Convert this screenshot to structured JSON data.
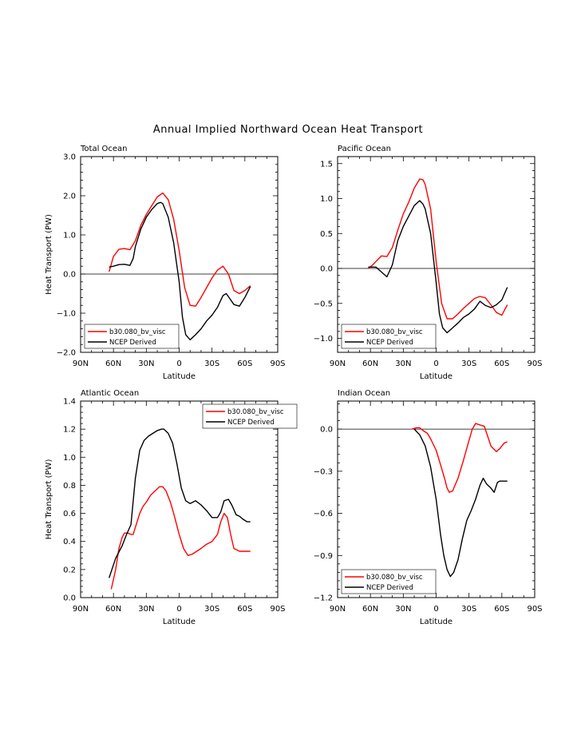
{
  "title": "Annual Implied Northward Ocean Heat Transport",
  "colors": {
    "model": "#ff0000",
    "obs": "#000000",
    "zero": "#000000"
  },
  "chart_data": [
    {
      "type": "line",
      "panel_title": "Total Ocean",
      "xlabel": "Latitude",
      "ylabel": "Heat Transport (PW)",
      "xlim": [
        90,
        -90
      ],
      "x_ticks": [
        90,
        60,
        30,
        0,
        -30,
        -60,
        -90
      ],
      "x_tick_labels": [
        "90N",
        "60N",
        "30N",
        "0",
        "30S",
        "60S",
        "90S"
      ],
      "ylim": [
        -2.0,
        3.0
      ],
      "y_ticks": [
        -2.0,
        -1.0,
        0.0,
        1.0,
        2.0,
        3.0
      ],
      "y_tick_labels": [
        "−2.0",
        "−1.0",
        "0.0",
        "1.0",
        "2.0",
        "3.0"
      ],
      "zero_line": true,
      "legend_position": "bottom-left",
      "series": [
        {
          "name": "b30.080_bv_visc",
          "color": "red",
          "x": [
            64,
            60,
            55,
            50,
            45,
            40,
            35,
            30,
            25,
            20,
            15,
            10,
            5,
            0,
            -5,
            -10,
            -15,
            -20,
            -25,
            -30,
            -35,
            -40,
            -45,
            -50,
            -55,
            -60,
            -65
          ],
          "y": [
            0.06,
            0.45,
            0.63,
            0.65,
            0.62,
            0.85,
            1.25,
            1.52,
            1.75,
            1.97,
            2.07,
            1.9,
            1.4,
            0.6,
            -0.35,
            -0.8,
            -0.82,
            -0.6,
            -0.35,
            -0.1,
            0.1,
            0.2,
            0.0,
            -0.42,
            -0.5,
            -0.42,
            -0.3
          ]
        },
        {
          "name": "NCEP Derived",
          "color": "black",
          "x": [
            64,
            60,
            55,
            50,
            45,
            42,
            40,
            35,
            30,
            25,
            20,
            17,
            15,
            10,
            5,
            0,
            -3,
            -6,
            -10,
            -15,
            -20,
            -25,
            -30,
            -35,
            -40,
            -43,
            -45,
            -50,
            -55,
            -60,
            -65
          ],
          "y": [
            0.18,
            0.2,
            0.24,
            0.25,
            0.22,
            0.4,
            0.7,
            1.15,
            1.45,
            1.65,
            1.8,
            1.83,
            1.8,
            1.45,
            0.8,
            -0.2,
            -1.1,
            -1.55,
            -1.68,
            -1.55,
            -1.4,
            -1.2,
            -1.05,
            -0.85,
            -0.55,
            -0.5,
            -0.58,
            -0.78,
            -0.82,
            -0.6,
            -0.32
          ]
        }
      ]
    },
    {
      "type": "line",
      "panel_title": "Pacific Ocean",
      "xlabel": "Latitude",
      "ylabel": "",
      "xlim": [
        90,
        -90
      ],
      "x_ticks": [
        90,
        60,
        30,
        0,
        -30,
        -60,
        -90
      ],
      "x_tick_labels": [
        "90N",
        "60N",
        "30N",
        "0",
        "30S",
        "60S",
        "90S"
      ],
      "ylim": [
        -1.2,
        1.6
      ],
      "y_ticks": [
        -1.0,
        -0.5,
        0.0,
        0.5,
        1.0,
        1.5
      ],
      "y_tick_labels": [
        "−1.0",
        "−0.5",
        "0.0",
        "0.5",
        "1.0",
        "1.5"
      ],
      "zero_line": true,
      "legend_position": "bottom-left",
      "series": [
        {
          "name": "b30.080_bv_visc",
          "color": "red",
          "x": [
            62,
            58,
            55,
            50,
            45,
            40,
            35,
            30,
            25,
            20,
            15,
            12,
            10,
            5,
            0,
            -5,
            -10,
            -15,
            -20,
            -25,
            -30,
            -35,
            -40,
            -45,
            -50,
            -55,
            -60,
            -65
          ],
          "y": [
            0.0,
            0.05,
            0.1,
            0.18,
            0.17,
            0.3,
            0.55,
            0.78,
            0.95,
            1.15,
            1.28,
            1.27,
            1.2,
            0.85,
            0.1,
            -0.5,
            -0.72,
            -0.72,
            -0.65,
            -0.57,
            -0.5,
            -0.43,
            -0.4,
            -0.42,
            -0.52,
            -0.63,
            -0.67,
            -0.52
          ]
        },
        {
          "name": "NCEP Derived",
          "color": "black",
          "x": [
            62,
            55,
            50,
            45,
            40,
            35,
            30,
            25,
            20,
            15,
            12,
            10,
            5,
            0,
            -3,
            -6,
            -10,
            -15,
            -20,
            -25,
            -30,
            -35,
            -40,
            -45,
            -50,
            -55,
            -60,
            -65
          ],
          "y": [
            0.02,
            0.02,
            -0.05,
            -0.12,
            0.05,
            0.4,
            0.6,
            0.75,
            0.9,
            0.97,
            0.92,
            0.85,
            0.5,
            -0.2,
            -0.65,
            -0.85,
            -0.92,
            -0.85,
            -0.78,
            -0.7,
            -0.65,
            -0.58,
            -0.47,
            -0.53,
            -0.56,
            -0.52,
            -0.45,
            -0.27
          ]
        }
      ]
    },
    {
      "type": "line",
      "panel_title": "Atlantic Ocean",
      "xlabel": "Latitude",
      "ylabel": "Heat Transport (PW)",
      "xlim": [
        90,
        -90
      ],
      "x_ticks": [
        90,
        60,
        30,
        0,
        -30,
        -60,
        -90
      ],
      "x_tick_labels": [
        "90N",
        "60N",
        "30N",
        "0",
        "30S",
        "60S",
        "90S"
      ],
      "ylim": [
        0.0,
        1.4
      ],
      "y_ticks": [
        0.0,
        0.2,
        0.4,
        0.6,
        0.8,
        1.0,
        1.2,
        1.4
      ],
      "y_tick_labels": [
        "0.0",
        "0.2",
        "0.4",
        "0.6",
        "0.8",
        "1.0",
        "1.2",
        "1.4"
      ],
      "zero_line": false,
      "legend_position": "top-right",
      "series": [
        {
          "name": "b30.080_bv_visc",
          "color": "red",
          "x": [
            62,
            58,
            55,
            52,
            50,
            47,
            44,
            42,
            40,
            36,
            33,
            30,
            26,
            22,
            18,
            15,
            12,
            8,
            5,
            0,
            -4,
            -8,
            -12,
            -16,
            -20,
            -25,
            -30,
            -35,
            -38,
            -41,
            -44,
            -47,
            -50,
            -55,
            -60,
            -65
          ],
          "y": [
            0.06,
            0.2,
            0.35,
            0.43,
            0.46,
            0.46,
            0.45,
            0.45,
            0.5,
            0.6,
            0.65,
            0.68,
            0.73,
            0.76,
            0.79,
            0.79,
            0.76,
            0.68,
            0.6,
            0.45,
            0.35,
            0.3,
            0.31,
            0.33,
            0.35,
            0.38,
            0.4,
            0.45,
            0.54,
            0.6,
            0.57,
            0.45,
            0.35,
            0.33,
            0.33,
            0.33
          ]
        },
        {
          "name": "NCEP Derived",
          "color": "black",
          "x": [
            64,
            58,
            52,
            48,
            44,
            40,
            36,
            32,
            28,
            24,
            20,
            16,
            14,
            10,
            6,
            2,
            -2,
            -6,
            -10,
            -15,
            -20,
            -25,
            -30,
            -35,
            -38,
            -41,
            -45,
            -48,
            -52,
            -55,
            -58,
            -62,
            -65
          ],
          "y": [
            0.14,
            0.28,
            0.37,
            0.45,
            0.52,
            0.85,
            1.05,
            1.12,
            1.15,
            1.17,
            1.19,
            1.2,
            1.2,
            1.17,
            1.1,
            0.95,
            0.78,
            0.69,
            0.67,
            0.69,
            0.66,
            0.62,
            0.57,
            0.57,
            0.61,
            0.69,
            0.7,
            0.66,
            0.59,
            0.58,
            0.56,
            0.54,
            0.54
          ]
        }
      ]
    },
    {
      "type": "line",
      "panel_title": "Indian Ocean",
      "xlabel": "Latitude",
      "ylabel": "",
      "xlim": [
        90,
        -90
      ],
      "x_ticks": [
        90,
        60,
        30,
        0,
        -30,
        -60,
        -90
      ],
      "x_tick_labels": [
        "90N",
        "60N",
        "30N",
        "0",
        "30S",
        "60S",
        "90S"
      ],
      "ylim": [
        -1.2,
        0.2
      ],
      "y_ticks": [
        -1.2,
        -0.9,
        -0.6,
        -0.3,
        0.0
      ],
      "y_tick_labels": [
        "−1.2",
        "−0.9",
        "−0.6",
        "−0.3",
        "0.0"
      ],
      "zero_line": true,
      "legend_position": "bottom-left",
      "series": [
        {
          "name": "b30.080_bv_visc",
          "color": "red",
          "x": [
            22,
            18,
            15,
            12,
            8,
            5,
            0,
            -5,
            -8,
            -10,
            -12,
            -15,
            -20,
            -25,
            -30,
            -33,
            -36,
            -40,
            -44,
            -47,
            -50,
            -55,
            -58,
            -62,
            -65
          ],
          "y": [
            0.0,
            0.01,
            0.01,
            -0.01,
            -0.03,
            -0.07,
            -0.15,
            -0.28,
            -0.36,
            -0.42,
            -0.45,
            -0.44,
            -0.35,
            -0.22,
            -0.08,
            0.0,
            0.04,
            0.03,
            0.02,
            -0.05,
            -0.12,
            -0.16,
            -0.14,
            -0.1,
            -0.09
          ]
        },
        {
          "name": "NCEP Derived",
          "color": "black",
          "x": [
            20,
            15,
            10,
            5,
            0,
            -4,
            -7,
            -10,
            -13,
            -16,
            -20,
            -24,
            -28,
            -32,
            -36,
            -40,
            -43,
            -46,
            -50,
            -53,
            -56,
            -58,
            -62,
            -65
          ],
          "y": [
            -0.0,
            -0.04,
            -0.12,
            -0.27,
            -0.5,
            -0.75,
            -0.9,
            -1.0,
            -1.05,
            -1.02,
            -0.93,
            -0.78,
            -0.65,
            -0.58,
            -0.5,
            -0.4,
            -0.35,
            -0.39,
            -0.42,
            -0.45,
            -0.38,
            -0.37,
            -0.37,
            -0.37
          ]
        }
      ]
    }
  ]
}
